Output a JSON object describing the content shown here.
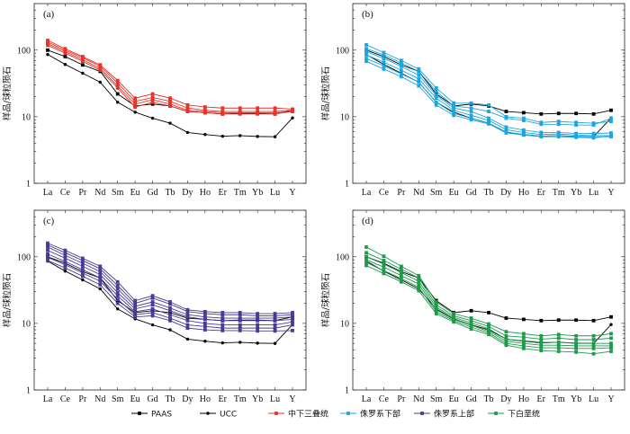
{
  "chart_data": {
    "type": "line",
    "y_scale": "log",
    "ylim": [
      1,
      500
    ],
    "ytick_labels": [
      "1",
      "10",
      "100"
    ],
    "ylabel": "样品/球粒陨石",
    "x": [
      "La",
      "Ce",
      "Pr",
      "Nd",
      "Sm",
      "Eu",
      "Gd",
      "Tb",
      "Dy",
      "Ho",
      "Er",
      "Tm",
      "Yb",
      "Lu",
      "Y"
    ],
    "legend": [
      {
        "name": "PAAS",
        "color": "#000000",
        "marker": "square"
      },
      {
        "name": "UCC",
        "color": "#000000",
        "marker": "circle"
      },
      {
        "name": "中下三叠统",
        "color": "#e8322a",
        "marker": "square"
      },
      {
        "name": "侏罗系下部",
        "color": "#1ba6df",
        "marker": "square"
      },
      {
        "name": "侏罗系上部",
        "color": "#4a3a96",
        "marker": "square"
      },
      {
        "name": "下白垩统",
        "color": "#1e9a4b",
        "marker": "square"
      }
    ],
    "reference": {
      "PAAS": [
        100,
        80,
        60,
        48,
        22,
        14.5,
        15.5,
        14.5,
        12,
        11.5,
        11,
        11.2,
        11.2,
        11,
        12.5
      ],
      "UCC": [
        86,
        61,
        45,
        33,
        16.5,
        11.7,
        9.5,
        8,
        5.8,
        5.4,
        5.1,
        5.2,
        5.05,
        5,
        9.6
      ]
    },
    "panels": [
      {
        "label": "(a)",
        "color": "#e8322a",
        "series": [
          [
            140,
            105,
            80,
            60,
            35,
            19,
            22,
            19,
            15,
            14,
            13.5,
            13.5,
            13.5,
            13.5,
            13
          ],
          [
            132,
            100,
            77,
            57,
            32,
            17,
            19.5,
            17,
            13.5,
            12.5,
            12,
            12,
            12,
            12,
            12.5
          ],
          [
            125,
            95,
            72,
            53,
            29,
            15.5,
            18,
            15.5,
            12.5,
            12,
            11.5,
            11.5,
            11.5,
            11.5,
            12
          ],
          [
            118,
            90,
            68,
            50,
            27,
            14,
            16.5,
            14.5,
            12,
            11.5,
            11,
            11,
            11,
            11,
            12
          ]
        ]
      },
      {
        "label": "(b)",
        "color": "#1ba6df",
        "series": [
          [
            120,
            92,
            70,
            52,
            27,
            16,
            16,
            15,
            10,
            9.5,
            8.2,
            8.5,
            8.2,
            8,
            8.5
          ],
          [
            105,
            85,
            64,
            48,
            24,
            14.5,
            13.5,
            12,
            9.5,
            8.8,
            7.7,
            7.7,
            7.5,
            7.5,
            9.5
          ],
          [
            95,
            75,
            57,
            42,
            21,
            13.5,
            12,
            9.5,
            7,
            6.3,
            5.8,
            5.8,
            5.6,
            5.6,
            5.7
          ],
          [
            85,
            66,
            50,
            37,
            19,
            12.5,
            10.5,
            8.8,
            6.4,
            5.8,
            5.4,
            5.5,
            5.3,
            5.2,
            5.2
          ],
          [
            75,
            58,
            44,
            33,
            16.5,
            11.2,
            9.5,
            8,
            5.9,
            5.4,
            5.1,
            5.2,
            5,
            5,
            5
          ],
          [
            68,
            52,
            40,
            29,
            15,
            10.5,
            9,
            7.8,
            5.7,
            5.3,
            5,
            5,
            4.9,
            4.8,
            5.2
          ]
        ]
      },
      {
        "label": "(c)",
        "color": "#4a3a96",
        "series": [
          [
            160,
            125,
            95,
            72,
            42,
            22,
            26,
            21,
            16,
            15,
            14.5,
            14.5,
            14,
            14,
            14.5
          ],
          [
            150,
            115,
            88,
            66,
            37,
            20,
            24,
            19.5,
            15,
            14,
            13.5,
            13.5,
            13,
            13,
            13.5
          ],
          [
            140,
            105,
            80,
            60,
            33,
            18,
            21,
            17,
            13.5,
            12.5,
            12,
            12,
            12,
            12,
            12.5
          ],
          [
            125,
            95,
            72,
            54,
            29,
            16.5,
            19,
            15.5,
            12.5,
            11.5,
            11,
            11,
            11,
            11,
            11.5
          ],
          [
            110,
            85,
            64,
            48,
            26,
            15,
            16.5,
            13.5,
            11,
            10,
            9.5,
            9.5,
            9.5,
            9.5,
            10.5
          ],
          [
            98,
            76,
            57,
            43,
            23,
            13.5,
            14.5,
            12,
            9.5,
            9,
            8.5,
            8.5,
            8.5,
            8.5,
            9.5
          ],
          [
            88,
            68,
            51,
            38,
            20,
            12.5,
            13,
            11,
            8.5,
            8,
            7.8,
            7.8,
            7.7,
            7.7,
            7.8
          ]
        ]
      },
      {
        "label": "(d)",
        "color": "#1e9a4b",
        "series": [
          [
            140,
            102,
            72,
            52,
            21,
            14,
            12,
            9.8,
            7.5,
            7,
            6.5,
            6.8,
            6.5,
            6.5,
            7
          ],
          [
            115,
            88,
            65,
            48,
            19,
            13,
            11,
            9,
            6.5,
            6.2,
            5.8,
            6,
            5.7,
            5.7,
            6
          ],
          [
            100,
            78,
            58,
            43,
            17.5,
            12.3,
            10.2,
            8.3,
            5.8,
            5.5,
            5.2,
            5.2,
            5,
            5,
            5
          ],
          [
            90,
            70,
            52,
            39,
            16,
            11.5,
            9.4,
            7.6,
            5.4,
            5,
            4.7,
            4.7,
            4.6,
            4.6,
            4.6
          ],
          [
            82,
            62,
            47,
            35,
            15,
            11,
            8.8,
            7.2,
            5,
            4.6,
            4.3,
            4.3,
            4.2,
            4.2,
            4.3
          ],
          [
            74,
            56,
            42,
            31,
            14,
            10.5,
            8.2,
            6.8,
            4.7,
            4.2,
            3.9,
            3.8,
            3.7,
            3.5,
            3.8
          ]
        ]
      }
    ]
  }
}
